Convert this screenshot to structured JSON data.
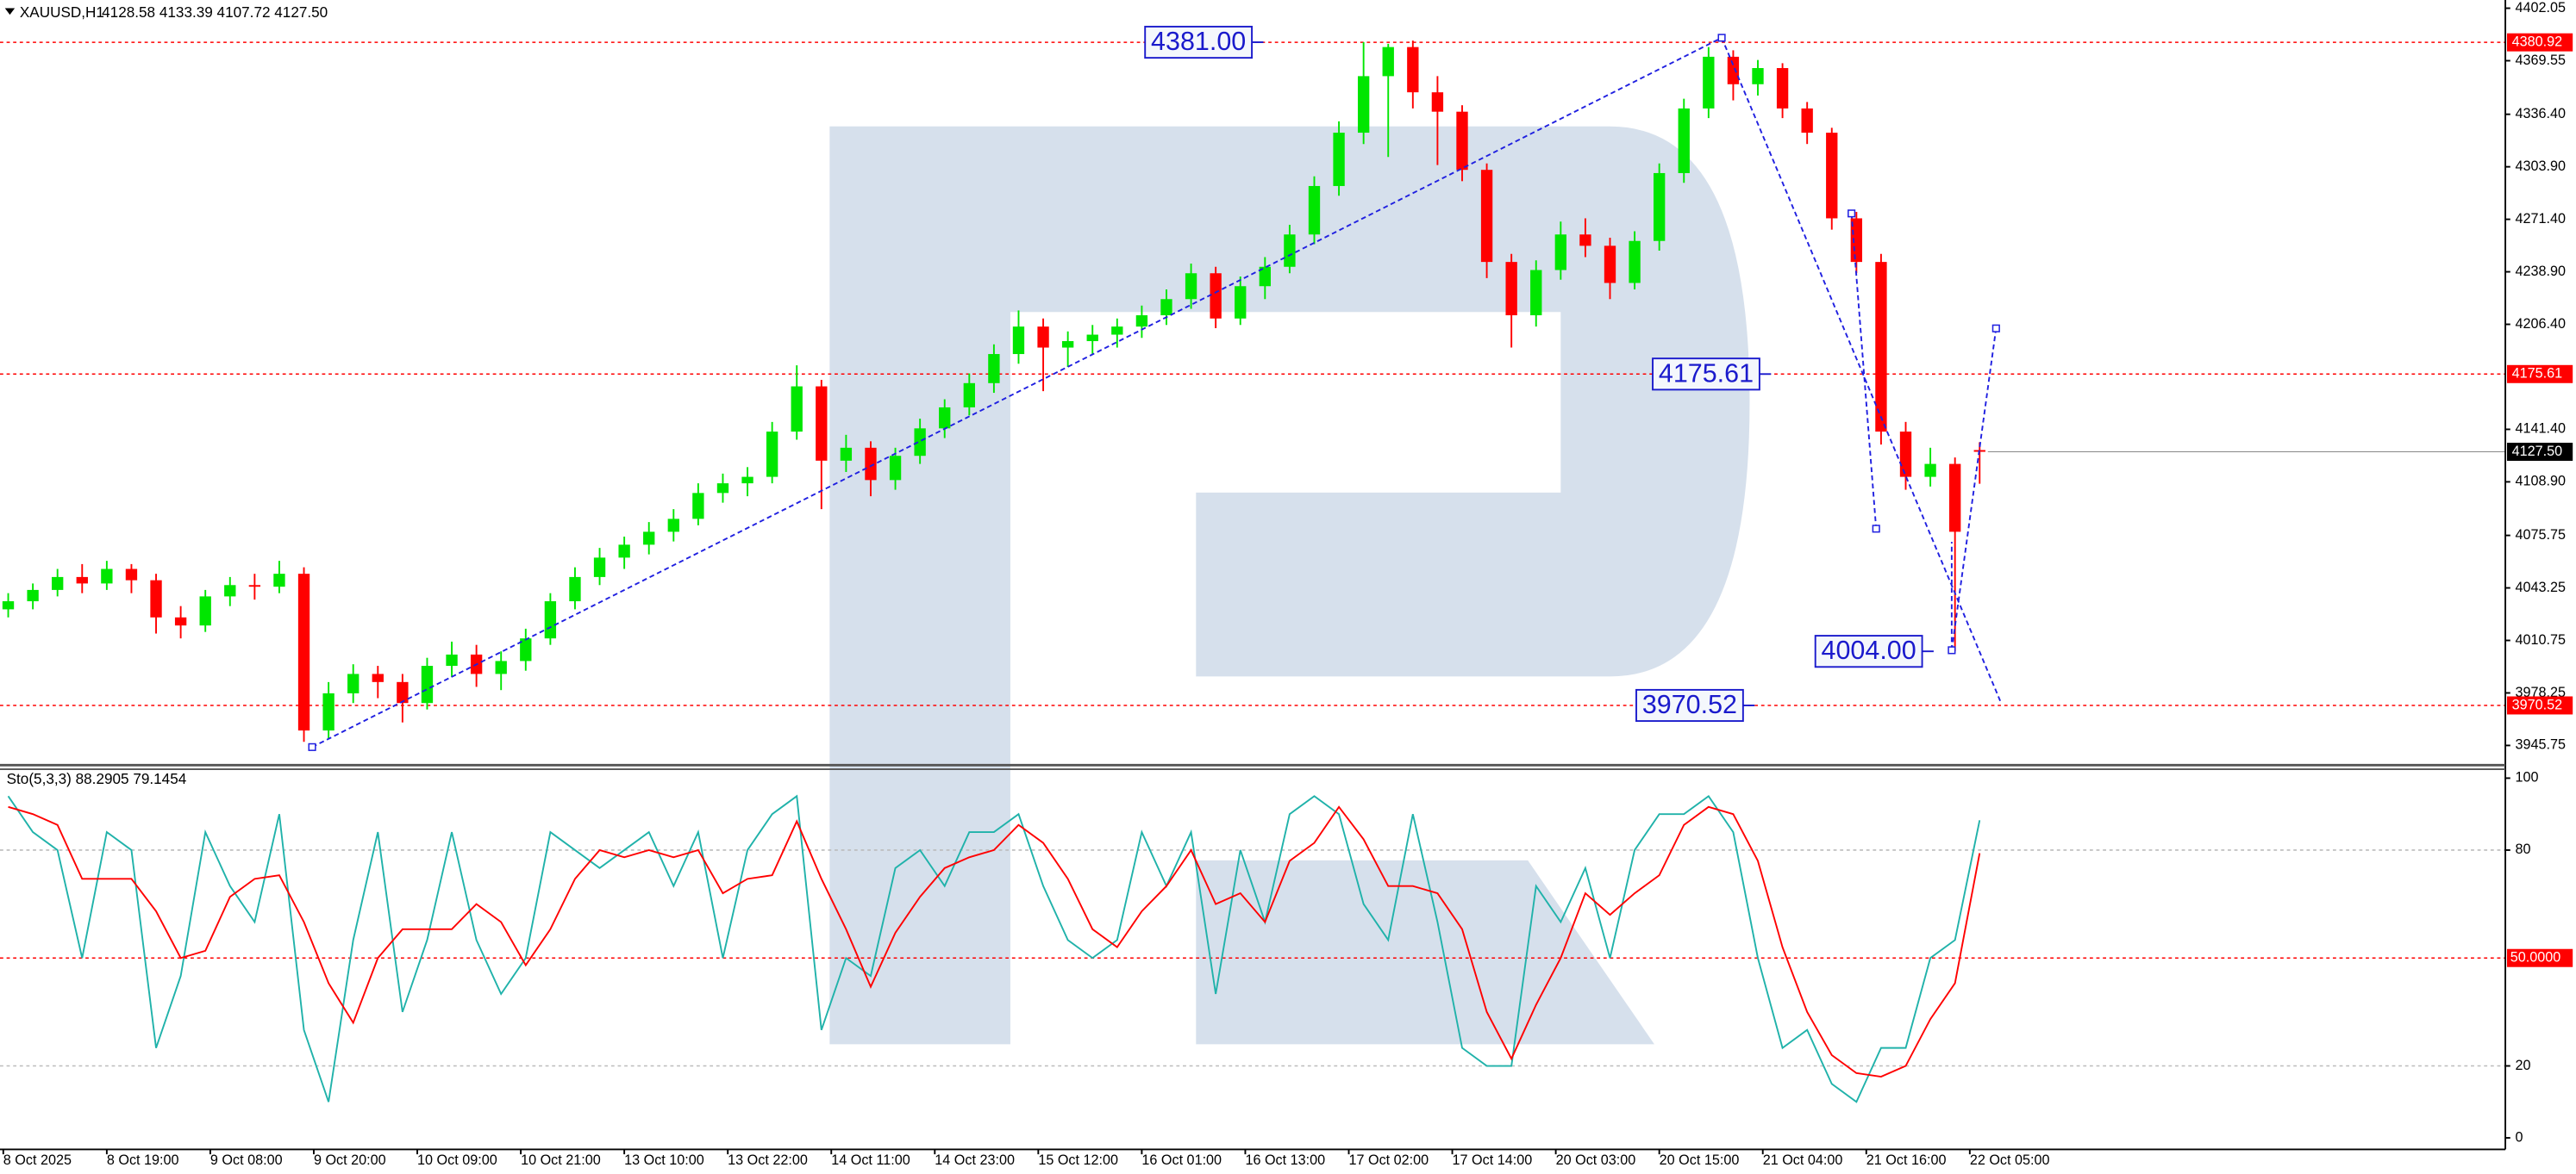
{
  "chart_data": [
    {
      "type": "candlestick",
      "title": "XAUUSD,H1",
      "subtitle": "4128.58 4133.39 4107.72 4127.50",
      "up_color": "#00e600",
      "down_color": "#ff0000",
      "ylim": [
        3933.55,
        4407.13
      ],
      "yticks": [
        4402.05,
        4369.55,
        {
          "value": 4336.4,
          "label": "4336.40"
        },
        {
          "value": 4303.9,
          "label": "4303.90"
        },
        {
          "value": 4271.4,
          "label": "4271.40"
        },
        {
          "value": 4238.9,
          "label": "4238.90"
        },
        {
          "value": 4206.4,
          "label": "4206.40"
        },
        {
          "value": 4141.4,
          "label": "4141.40"
        },
        {
          "value": 4108.9,
          "label": "4108.90"
        },
        4075.75,
        4043.25,
        4010.75,
        3978.25,
        3945.75
      ],
      "levels": [
        4380.92,
        4175.61,
        3970.52
      ],
      "level_color": "#ff0000",
      "current_price": {
        "value": 4127.5,
        "label": "4127.50"
      },
      "annotations": [
        {
          "value": 4381,
          "label": "4381.00"
        },
        {
          "value": 4175.61,
          "label": "4175.61"
        },
        {
          "value": 4004,
          "label": "4004.00"
        },
        {
          "value": 3970.52,
          "label": "3970.52"
        }
      ],
      "annotation_color": "#1a1acc",
      "candles": [
        [
          4030,
          4040,
          4025,
          4035
        ],
        [
          4035,
          4046,
          4030,
          4042
        ],
        [
          4042,
          4055,
          4038,
          4050
        ],
        [
          4050,
          4058,
          4040,
          4046
        ],
        [
          4046,
          4060,
          4042,
          4055
        ],
        [
          4055,
          4058,
          4040,
          4048
        ],
        [
          4048,
          4052,
          4015,
          4025
        ],
        [
          4025,
          4032,
          4012,
          4020
        ],
        [
          4020,
          4042,
          4016,
          4038
        ],
        [
          4038,
          4050,
          4032,
          4045
        ],
        [
          4045,
          4052,
          4036,
          4044
        ],
        [
          4044,
          4060,
          4040,
          4052
        ],
        [
          4052,
          4056,
          3948,
          3955
        ],
        [
          3955,
          3985,
          3950,
          3978
        ],
        [
          3978,
          3996,
          3972,
          3990
        ],
        [
          3990,
          3995,
          3975,
          3985
        ],
        [
          3985,
          3990,
          3960,
          3972
        ],
        [
          3972,
          4000,
          3968,
          3995
        ],
        [
          3995,
          4010,
          3988,
          4002
        ],
        [
          4002,
          4008,
          3982,
          3990
        ],
        [
          3990,
          4004,
          3980,
          3998
        ],
        [
          3998,
          4018,
          3992,
          4012
        ],
        [
          4012,
          4040,
          4008,
          4035
        ],
        [
          4035,
          4056,
          4030,
          4050
        ],
        [
          4050,
          4068,
          4045,
          4062
        ],
        [
          4062,
          4075,
          4055,
          4070
        ],
        [
          4070,
          4084,
          4064,
          4078
        ],
        [
          4078,
          4092,
          4072,
          4086
        ],
        [
          4086,
          4108,
          4082,
          4102
        ],
        [
          4102,
          4114,
          4096,
          4108
        ],
        [
          4108,
          4118,
          4100,
          4112
        ],
        [
          4112,
          4146,
          4108,
          4140
        ],
        [
          4140,
          4181,
          4135,
          4168
        ],
        [
          4168,
          4172,
          4092,
          4122
        ],
        [
          4122,
          4138,
          4115,
          4130
        ],
        [
          4130,
          4134,
          4100,
          4110
        ],
        [
          4110,
          4130,
          4104,
          4125
        ],
        [
          4125,
          4148,
          4120,
          4142
        ],
        [
          4142,
          4160,
          4136,
          4155
        ],
        [
          4155,
          4176,
          4150,
          4170
        ],
        [
          4170,
          4194,
          4164,
          4188
        ],
        [
          4188,
          4215,
          4182,
          4205
        ],
        [
          4205,
          4210,
          4165,
          4192
        ],
        [
          4192,
          4202,
          4180,
          4196
        ],
        [
          4196,
          4206,
          4188,
          4200
        ],
        [
          4200,
          4210,
          4192,
          4205
        ],
        [
          4205,
          4218,
          4198,
          4212
        ],
        [
          4212,
          4228,
          4206,
          4222
        ],
        [
          4222,
          4244,
          4216,
          4238
        ],
        [
          4238,
          4242,
          4204,
          4210
        ],
        [
          4210,
          4236,
          4206,
          4230
        ],
        [
          4230,
          4248,
          4222,
          4242
        ],
        [
          4242,
          4268,
          4238,
          4262
        ],
        [
          4262,
          4298,
          4256,
          4292
        ],
        [
          4292,
          4332,
          4286,
          4325
        ],
        [
          4325,
          4381,
          4318,
          4360
        ],
        [
          4360,
          4380,
          4310,
          4378
        ],
        [
          4378,
          4382,
          4340,
          4350
        ],
        [
          4350,
          4360,
          4305,
          4338
        ],
        [
          4338,
          4342,
          4295,
          4302
        ],
        [
          4302,
          4306,
          4235,
          4245
        ],
        [
          4245,
          4250,
          4192,
          4212
        ],
        [
          4212,
          4246,
          4205,
          4240
        ],
        [
          4240,
          4270,
          4234,
          4262
        ],
        [
          4262,
          4272,
          4248,
          4255
        ],
        [
          4255,
          4260,
          4222,
          4232
        ],
        [
          4232,
          4264,
          4228,
          4258
        ],
        [
          4258,
          4306,
          4252,
          4300
        ],
        [
          4300,
          4346,
          4294,
          4340
        ],
        [
          4340,
          4378,
          4334,
          4372
        ],
        [
          4372,
          4376,
          4345,
          4355
        ],
        [
          4355,
          4370,
          4348,
          4365
        ],
        [
          4365,
          4368,
          4334,
          4340
        ],
        [
          4340,
          4344,
          4318,
          4325
        ],
        [
          4325,
          4328,
          4265,
          4272
        ],
        [
          4272,
          4276,
          4238,
          4245
        ],
        [
          4245,
          4250,
          4132,
          4140
        ],
        [
          4140,
          4146,
          4104,
          4112
        ],
        [
          4112,
          4130,
          4106,
          4120
        ],
        [
          4120,
          4124,
          4004,
          4078
        ],
        [
          4128.58,
          4133.39,
          4107.72,
          4127.5
        ]
      ]
    },
    {
      "type": "line",
      "title": "Sto(5,3,3) 88.2905 79.1454",
      "ylim": [
        -3.2,
        102.7
      ],
      "yticks": [
        100,
        80,
        20,
        0
      ],
      "levels": [
        80,
        20
      ],
      "signal_level": {
        "value": 50,
        "label": "50.0000"
      },
      "xtick_labels": [
        "8 Oct 2025",
        "8 Oct 19:00",
        "9 Oct 08:00",
        "9 Oct 20:00",
        "10 Oct 09:00",
        "10 Oct 21:00",
        "13 Oct 10:00",
        "13 Oct 22:00",
        "14 Oct 11:00",
        "14 Oct 23:00",
        "15 Oct 12:00",
        "16 Oct 01:00",
        "16 Oct 13:00",
        "17 Oct 02:00",
        "17 Oct 14:00",
        "20 Oct 03:00",
        "20 Oct 15:00",
        "21 Oct 04:00",
        "21 Oct 16:00",
        "22 Oct 05:00"
      ],
      "series": [
        {
          "color": "#20b2aa",
          "values": [
            95,
            85,
            80,
            50,
            85,
            80,
            25,
            45,
            85,
            70,
            60,
            90,
            30,
            10,
            55,
            85,
            35,
            55,
            85,
            55,
            40,
            50,
            85,
            80,
            75,
            80,
            85,
            70,
            85,
            50,
            80,
            90,
            95,
            30,
            50,
            45,
            75,
            80,
            70,
            85,
            85,
            90,
            70,
            55,
            50,
            55,
            85,
            70,
            85,
            40,
            80,
            60,
            90,
            95,
            90,
            65,
            55,
            90,
            60,
            25,
            20,
            20,
            70,
            60,
            75,
            50,
            80,
            90,
            90,
            95,
            85,
            50,
            25,
            30,
            15,
            10,
            25,
            25,
            50,
            55,
            88.2905
          ]
        },
        {
          "color": "#ff0000",
          "values": [
            92,
            90,
            87,
            72,
            72,
            72,
            63,
            50,
            52,
            67,
            72,
            73,
            60,
            43,
            32,
            50,
            58,
            58,
            58,
            65,
            60,
            48,
            58,
            72,
            80,
            78,
            80,
            78,
            80,
            68,
            72,
            73,
            88,
            72,
            58,
            42,
            57,
            67,
            75,
            78,
            80,
            87,
            82,
            72,
            58,
            53,
            63,
            70,
            80,
            65,
            68,
            60,
            77,
            82,
            92,
            83,
            70,
            70,
            68,
            58,
            35,
            22,
            37,
            50,
            68,
            62,
            68,
            73,
            87,
            92,
            90,
            77,
            53,
            35,
            23,
            18,
            17,
            20,
            33,
            43,
            79.1454
          ]
        }
      ]
    }
  ]
}
